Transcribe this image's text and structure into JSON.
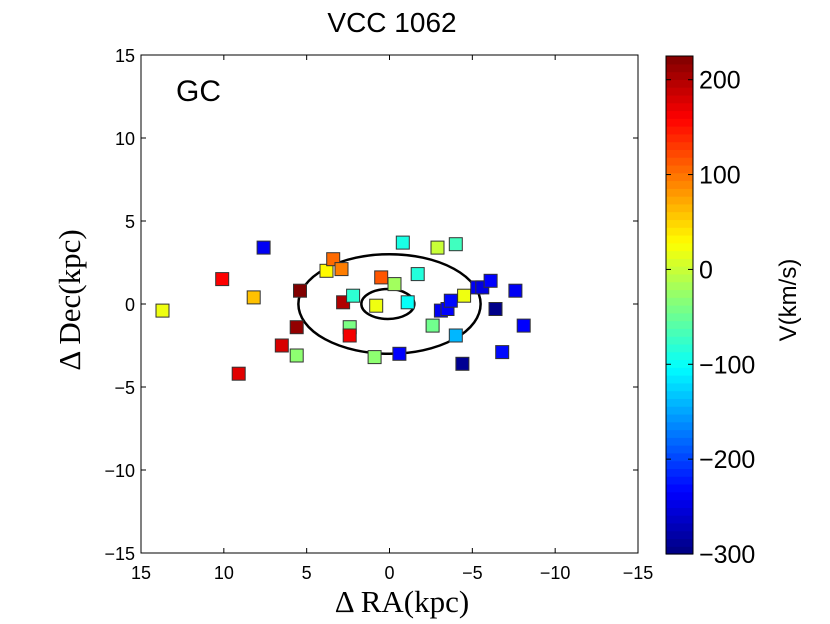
{
  "chart_data": {
    "type": "scatter",
    "title": "VCC 1062",
    "panel_label": "GC",
    "xlabel": "Δ RA(kpc)",
    "ylabel": "Δ Dec(kpc)",
    "xlim": [
      15,
      -15
    ],
    "ylim": [
      -15,
      15
    ],
    "xticks": [
      15,
      10,
      5,
      0,
      -5,
      -10,
      -15
    ],
    "xtick_labels": [
      "15",
      "10",
      "5",
      "0",
      "−5",
      "−10",
      "−15"
    ],
    "yticks": [
      -15,
      -10,
      -5,
      0,
      5,
      10,
      15
    ],
    "ytick_labels": [
      "−15",
      "−10",
      "−5",
      "0",
      "5",
      "10",
      "15"
    ],
    "grid": false,
    "marker": "square",
    "colorbar": {
      "label": "V(km/s)",
      "range": [
        -300,
        225
      ],
      "ticks": [
        200,
        100,
        0,
        -100,
        -200,
        -300
      ],
      "tick_labels": [
        "200",
        "100",
        "0",
        "−100",
        "−200",
        "−300"
      ],
      "colormap": "jet"
    },
    "ellipses": [
      {
        "center": [
          0,
          0
        ],
        "semi_major": 5.5,
        "semi_minor": 3.0
      },
      {
        "center": [
          0.1,
          0
        ],
        "semi_major": 1.6,
        "semi_minor": 0.9
      }
    ],
    "points": [
      {
        "x": 13.7,
        "y": -0.4,
        "v": 20
      },
      {
        "x": 10.1,
        "y": 1.5,
        "v": 160
      },
      {
        "x": 8.2,
        "y": 0.4,
        "v": 60
      },
      {
        "x": 9.1,
        "y": -4.2,
        "v": 175
      },
      {
        "x": 7.6,
        "y": 3.4,
        "v": -240
      },
      {
        "x": 6.5,
        "y": -2.5,
        "v": 180
      },
      {
        "x": 5.6,
        "y": -1.4,
        "v": 215
      },
      {
        "x": 5.6,
        "y": -3.1,
        "v": -30
      },
      {
        "x": 5.4,
        "y": 0.8,
        "v": 225
      },
      {
        "x": 3.8,
        "y": 2.0,
        "v": 30
      },
      {
        "x": 3.4,
        "y": 2.7,
        "v": 105
      },
      {
        "x": 2.9,
        "y": 2.1,
        "v": 95
      },
      {
        "x": 2.8,
        "y": 0.1,
        "v": 200
      },
      {
        "x": 2.4,
        "y": -1.4,
        "v": -40
      },
      {
        "x": 2.4,
        "y": -1.9,
        "v": 165
      },
      {
        "x": 2.2,
        "y": 0.5,
        "v": -80
      },
      {
        "x": 0.9,
        "y": -3.2,
        "v": -30
      },
      {
        "x": 0.8,
        "y": -0.1,
        "v": 20
      },
      {
        "x": 0.5,
        "y": 1.6,
        "v": 115
      },
      {
        "x": -0.3,
        "y": 1.2,
        "v": -20
      },
      {
        "x": -0.6,
        "y": -3.0,
        "v": -235
      },
      {
        "x": -0.8,
        "y": 3.7,
        "v": -90
      },
      {
        "x": -1.1,
        "y": 0.1,
        "v": -100
      },
      {
        "x": -1.7,
        "y": 1.8,
        "v": -85
      },
      {
        "x": -2.6,
        "y": -1.3,
        "v": -45
      },
      {
        "x": -2.9,
        "y": 3.4,
        "v": 0
      },
      {
        "x": -3.1,
        "y": -0.4,
        "v": -240
      },
      {
        "x": -3.5,
        "y": -0.3,
        "v": -235
      },
      {
        "x": -3.7,
        "y": 0.2,
        "v": -230
      },
      {
        "x": -4.0,
        "y": 3.6,
        "v": -70
      },
      {
        "x": -4.0,
        "y": -1.9,
        "v": -140
      },
      {
        "x": -4.4,
        "y": -3.6,
        "v": -290
      },
      {
        "x": -4.5,
        "y": 0.5,
        "v": 20
      },
      {
        "x": -5.3,
        "y": 1.0,
        "v": -240
      },
      {
        "x": -5.6,
        "y": 1.0,
        "v": -250
      },
      {
        "x": -6.1,
        "y": 1.4,
        "v": -235
      },
      {
        "x": -6.4,
        "y": -0.3,
        "v": -295
      },
      {
        "x": -6.8,
        "y": -2.9,
        "v": -230
      },
      {
        "x": -7.6,
        "y": 0.8,
        "v": -240
      },
      {
        "x": -8.1,
        "y": -1.3,
        "v": -235
      }
    ]
  }
}
